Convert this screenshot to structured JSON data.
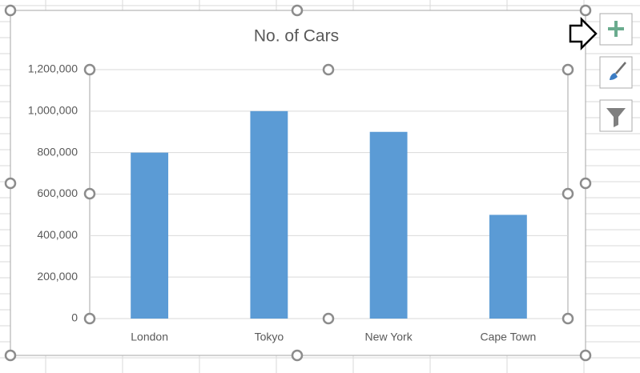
{
  "chart_data": {
    "type": "bar",
    "title": "No. of Cars",
    "categories": [
      "London",
      "Tokyo",
      "New York",
      "Cape Town"
    ],
    "values": [
      800000,
      1000000,
      900000,
      500000
    ],
    "color": "#5b9bd5",
    "ylim": [
      0,
      1200000
    ],
    "yticks": [
      0,
      {
        "value": 200000,
        "label": "200,000"
      },
      {
        "value": 400000,
        "label": "400,000"
      },
      {
        "value": 600000,
        "label": "600,000"
      },
      {
        "value": 800000,
        "label": "800,000"
      },
      {
        "value": 1000000,
        "label": "1,000,000"
      },
      {
        "value": 1200000,
        "label": "1,200,000"
      }
    ],
    "grid": true
  }
}
